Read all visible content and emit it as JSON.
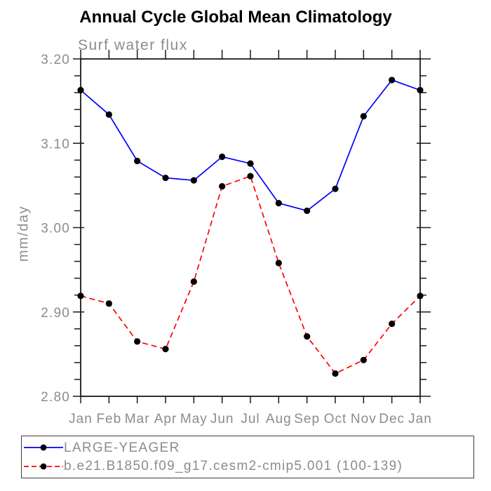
{
  "header": {
    "title": "Annual Cycle Global Mean Climatology"
  },
  "colors": {
    "title_text": "#000000",
    "axis_text": "#8c8c8c",
    "frame": "#1a1a1a",
    "legend_border": "#3c3c3c",
    "marker": "#000000",
    "series_blue": "#0000ff",
    "series_red": "#ff0000",
    "background": "#ffffff"
  },
  "chart_data": {
    "type": "line",
    "title": "Annual Cycle Global Mean Climatology",
    "subtitle": "Surf water flux",
    "xlabel": "",
    "ylabel": "mm/day",
    "categories": [
      "Jan",
      "Feb",
      "Mar",
      "Apr",
      "May",
      "Jun",
      "Jul",
      "Aug",
      "Sep",
      "Oct",
      "Nov",
      "Dec",
      "Jan"
    ],
    "ylim": [
      2.8,
      3.2
    ],
    "y_major_ticks": [
      3.2,
      3.1,
      3.0,
      2.9,
      2.8
    ],
    "y_minor_step": 0.02,
    "grid": false,
    "legend_position": "bottom-outside-box",
    "series": [
      {
        "name": "LARGE-YEAGER",
        "color": "#0000ff",
        "line_style": "solid",
        "marker": "filled-circle",
        "marker_color": "#000000",
        "values": [
          3.163,
          3.134,
          3.079,
          3.059,
          3.056,
          3.084,
          3.076,
          3.029,
          3.02,
          3.046,
          3.132,
          3.175,
          3.163
        ]
      },
      {
        "name": "b.e21.B1850.f09_g17.cesm2-cmip5.001 (100-139)",
        "color": "#ff0000",
        "line_style": "dashed",
        "marker": "filled-circle",
        "marker_color": "#000000",
        "values": [
          2.919,
          2.91,
          2.865,
          2.856,
          2.936,
          3.049,
          3.061,
          2.958,
          2.871,
          2.827,
          2.843,
          2.886,
          2.919
        ]
      }
    ]
  }
}
